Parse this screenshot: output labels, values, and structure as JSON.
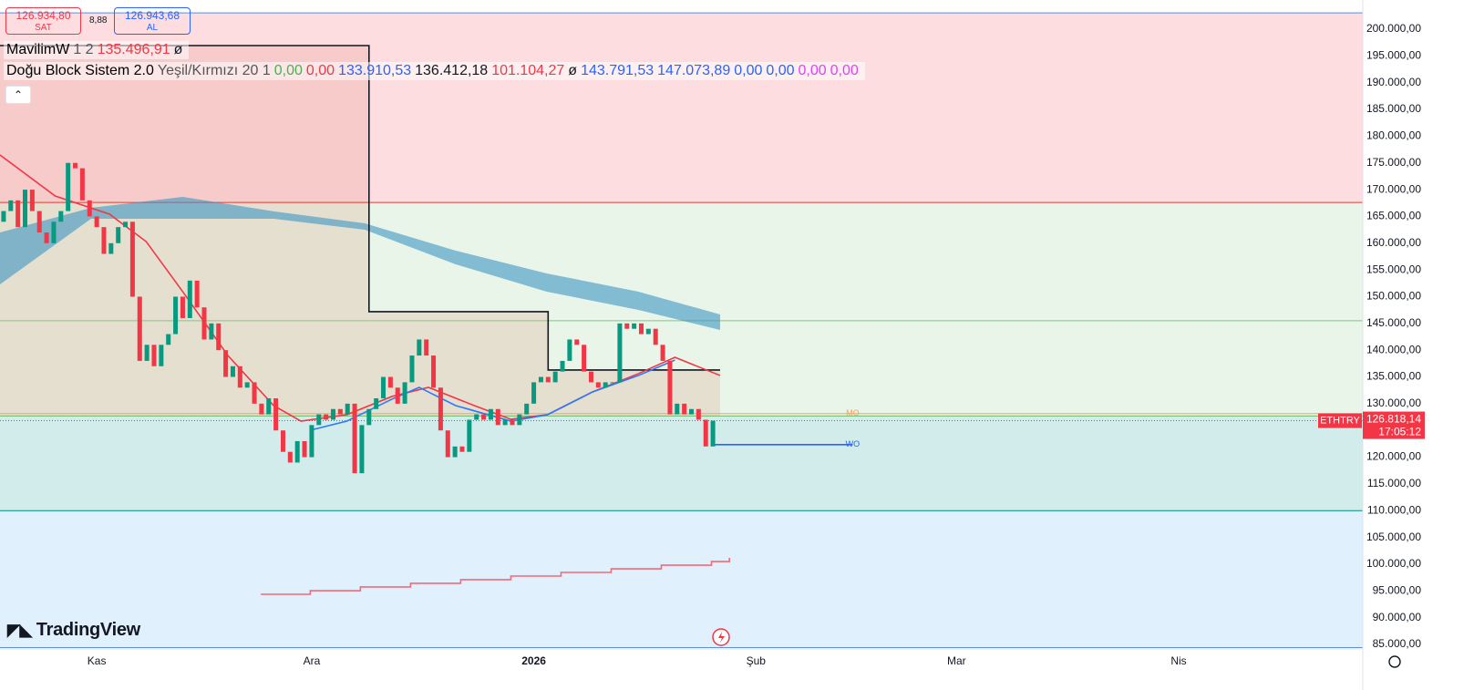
{
  "chart_data": {
    "type": "candlestick",
    "symbol": "ETHTRY",
    "quote": {
      "sell": "126.934,80",
      "sell_label": "SAT",
      "spread": "8,88",
      "buy": "126.943,68",
      "buy_label": "AL"
    },
    "indicators": [
      {
        "name": "MavilimW",
        "params": "1 2",
        "items": [
          {
            "text": "135.496,91",
            "color": "#f23645"
          },
          {
            "text": "ø",
            "color": "#131722"
          }
        ]
      },
      {
        "name": "Doğu Block Sistem 2.0",
        "params": "Yeşil/Kırmızı 20 1",
        "items": [
          {
            "text": "0,00",
            "color": "#4caf50"
          },
          {
            "text": "0,00",
            "color": "#f23645"
          },
          {
            "text": "133.910,53",
            "color": "#2962ff"
          },
          {
            "text": "136.412,18",
            "color": "#131722"
          },
          {
            "text": "101.104,27",
            "color": "#f23645"
          },
          {
            "text": "ø",
            "color": "#131722"
          },
          {
            "text": "143.791,53",
            "color": "#2962ff"
          },
          {
            "text": "147.073,89",
            "color": "#2962ff"
          },
          {
            "text": "0,00",
            "color": "#2962ff"
          },
          {
            "text": "0,00",
            "color": "#2962ff"
          },
          {
            "text": "0,00",
            "color": "#e040fb"
          },
          {
            "text": "0,00",
            "color": "#e040fb"
          }
        ]
      }
    ],
    "price_tag": {
      "price": "126.818,14",
      "timer": "17:05:12"
    },
    "logo": "TradingView",
    "annotations": [
      {
        "text": "MO",
        "x": 105.5,
        "y": 128150,
        "color": "#f7a35c"
      },
      {
        "text": "WO",
        "x": 105.5,
        "y": 122350,
        "color": "#2962ff"
      }
    ],
    "xlim": [
      -13.5,
      176.7
    ],
    "ylim": [
      84150,
      205450
    ],
    "xticks": [
      {
        "value": 0,
        "label": "Kas"
      },
      {
        "value": 30,
        "label": "Ara"
      },
      {
        "value": 61,
        "label": "2026"
      },
      {
        "value": 92,
        "label": "Şub"
      },
      {
        "value": 120,
        "label": "Mar"
      },
      {
        "value": 151,
        "label": "Nis"
      }
    ],
    "yticks": [
      {
        "value": 200000,
        "label": "200.000,00"
      },
      {
        "value": 195000,
        "label": "195.000,00"
      },
      {
        "value": 190000,
        "label": "190.000,00"
      },
      {
        "value": 185000,
        "label": "185.000,00"
      },
      {
        "value": 180000,
        "label": "180.000,00"
      },
      {
        "value": 175000,
        "label": "175.000,00"
      },
      {
        "value": 170000,
        "label": "170.000,00"
      },
      {
        "value": 165000,
        "label": "165.000,00"
      },
      {
        "value": 160000,
        "label": "160.000,00"
      },
      {
        "value": 155000,
        "label": "155.000,00"
      },
      {
        "value": 150000,
        "label": "150.000,00"
      },
      {
        "value": 145000,
        "label": "145.000,00"
      },
      {
        "value": 140000,
        "label": "140.000,00"
      },
      {
        "value": 135000,
        "label": "135.000,00"
      },
      {
        "value": 130000,
        "label": "130.000,00"
      },
      {
        "value": 125000,
        "label": "125.000,00"
      },
      {
        "value": 120000,
        "label": "120.000,00"
      },
      {
        "value": 115000,
        "label": "115.000,00"
      },
      {
        "value": 110000,
        "label": "110.000,00"
      },
      {
        "value": 105000,
        "label": "105.000,00"
      },
      {
        "value": 100000,
        "label": "100.000,00"
      },
      {
        "value": 95000,
        "label": "95.000,00"
      },
      {
        "value": 90000,
        "label": "90.000,00"
      },
      {
        "value": 85000,
        "label": "85.000,00"
      }
    ],
    "zones": [
      {
        "from": 203050,
        "to": 167600,
        "color": "rgba(242,54,69,0.17)"
      },
      {
        "from": 167600,
        "to": 127700,
        "color": "rgba(76,175,80,0.13)"
      },
      {
        "from": 127700,
        "to": 110000,
        "color": "rgba(0,150,136,0.18)"
      },
      {
        "from": 110000,
        "to": 84400,
        "color": "rgba(33,150,243,0.14)"
      }
    ],
    "levels": [
      {
        "value": 203050,
        "color": "#5b8fd6"
      },
      {
        "value": 167600,
        "color": "#e53935"
      },
      {
        "value": 145500,
        "color": "#81c784"
      },
      {
        "value": 128150,
        "color": "#f7a35c"
      },
      {
        "value": 127700,
        "color": "#66bb6a"
      },
      {
        "value": 110000,
        "color": "#00897b"
      },
      {
        "value": 84400,
        "color": "#5b8fd6"
      }
    ],
    "block": {
      "x": [
        -13.5,
        38,
        63,
        87
      ],
      "values": [
        196930,
        147190,
        136290,
        136290
      ],
      "base": 127700,
      "color": "rgba(214,120,90,0.17)"
    },
    "wo_line": {
      "x": [
        86,
        105.5
      ],
      "values": [
        122350,
        122350
      ]
    },
    "cloud": {
      "x": [
        -13.5,
        -0.8,
        12,
        24.7,
        37.4,
        50.1,
        62.8,
        75.6,
        87
      ],
      "upper": [
        162000,
        166600,
        168660,
        165950,
        163710,
        158600,
        154350,
        150940,
        146680
      ],
      "lower": [
        152300,
        164560,
        164560,
        164560,
        162520,
        156050,
        150940,
        147530,
        143780
      ],
      "color": "rgba(60,150,195,0.6)"
    },
    "ma_red": {
      "x": [
        -13.5,
        -5.8,
        1.8,
        6.9,
        12,
        18.3,
        24.7,
        28.5,
        34.9,
        41.2,
        46.3,
        52.7,
        57.8,
        62.9,
        69.2,
        75.6,
        80.7,
        87
      ],
      "values": [
        176490,
        168820,
        165410,
        160300,
        150940,
        139010,
        129640,
        126740,
        127940,
        131350,
        133050,
        129640,
        127090,
        127940,
        132200,
        135610,
        138670,
        135270
      ],
      "color": "#f23645"
    },
    "ma_blue": {
      "x": [
        29.8,
        34.9,
        41.2,
        45,
        50.1,
        57.8,
        62.9,
        69.2,
        75.6,
        80.7
      ],
      "values": [
        125040,
        126740,
        130840,
        133050,
        129640,
        126740,
        127940,
        132200,
        135270,
        138160
      ],
      "color": "#2979ff"
    },
    "pink_steps": {
      "x": [
        22.9,
        29.8,
        36.8,
        43.8,
        50.8,
        57.8,
        64.8,
        71.8,
        78.8,
        85.8,
        88.3
      ],
      "values": [
        94370,
        95050,
        95740,
        96420,
        97100,
        97780,
        98460,
        99140,
        99820,
        100500,
        101180
      ],
      "color": "#f06b7a"
    },
    "up_color": "#089981",
    "down_color": "#f23645",
    "x": [
      -13,
      -12,
      -11,
      -10,
      -9,
      -8,
      -7,
      -6,
      -5,
      -4,
      -3,
      -2,
      -1,
      0,
      1,
      2,
      3,
      4,
      5,
      6,
      7,
      8,
      9,
      10,
      11,
      12,
      13,
      14,
      15,
      16,
      17,
      18,
      19,
      20,
      21,
      22,
      23,
      24,
      25,
      26,
      27,
      28,
      29,
      30,
      31,
      32,
      33,
      34,
      35,
      36,
      37,
      38,
      39,
      40,
      41,
      42,
      43,
      44,
      45,
      46,
      47,
      48,
      49,
      50,
      51,
      52,
      53,
      54,
      55,
      56,
      57,
      58,
      59,
      60,
      61,
      62,
      63,
      64,
      65,
      66,
      67,
      68,
      69,
      70,
      71,
      72,
      73,
      74,
      75,
      76,
      77,
      78,
      79,
      80,
      81,
      82,
      83,
      84,
      85,
      86
    ],
    "open": [
      164000,
      166000,
      168000,
      163000,
      170000,
      166000,
      162000,
      160000,
      164000,
      166000,
      175000,
      174000,
      168000,
      165000,
      163000,
      158000,
      160000,
      163000,
      164000,
      150000,
      138000,
      141000,
      137000,
      141000,
      143000,
      150000,
      146000,
      153000,
      148000,
      142000,
      145000,
      140000,
      135000,
      137000,
      133000,
      134000,
      130000,
      128000,
      131000,
      125000,
      121000,
      119000,
      123000,
      120000,
      126000,
      128000,
      127000,
      129000,
      128000,
      130000,
      117000,
      126000,
      129000,
      131000,
      135000,
      133000,
      130000,
      134000,
      139000,
      142000,
      139000,
      133000,
      125000,
      120000,
      122000,
      121000,
      127000,
      128000,
      127000,
      129000,
      126000,
      127000,
      126000,
      128000,
      130000,
      134000,
      135000,
      134000,
      136000,
      138000,
      142000,
      141000,
      136000,
      134000,
      133000,
      134000,
      134000,
      145000,
      144000,
      145000,
      143000,
      144000,
      141000,
      138000,
      128000,
      130000,
      128000,
      129000,
      127000,
      122000
    ],
    "close": [
      166000,
      168000,
      163000,
      170000,
      166000,
      162000,
      160000,
      164000,
      166000,
      175000,
      174000,
      168000,
      165000,
      163000,
      158000,
      160000,
      163000,
      164000,
      150000,
      138000,
      141000,
      137000,
      141000,
      143000,
      150000,
      146000,
      153000,
      148000,
      142000,
      145000,
      140000,
      135000,
      137000,
      133000,
      134000,
      130000,
      128000,
      131000,
      125000,
      121000,
      119000,
      123000,
      120000,
      126000,
      128000,
      127000,
      129000,
      128000,
      130000,
      117000,
      126000,
      129000,
      131000,
      135000,
      133000,
      130000,
      134000,
      139000,
      142000,
      139000,
      133000,
      125000,
      120000,
      122000,
      121000,
      127000,
      128000,
      127000,
      129000,
      126000,
      127000,
      126000,
      128000,
      130000,
      134000,
      135000,
      134000,
      136000,
      138000,
      142000,
      141000,
      136000,
      134000,
      133000,
      134000,
      134000,
      145000,
      144000,
      145000,
      143000,
      144000,
      141000,
      138000,
      128000,
      130000,
      128000,
      129000,
      127000,
      122000,
      126818.14
    ]
  }
}
